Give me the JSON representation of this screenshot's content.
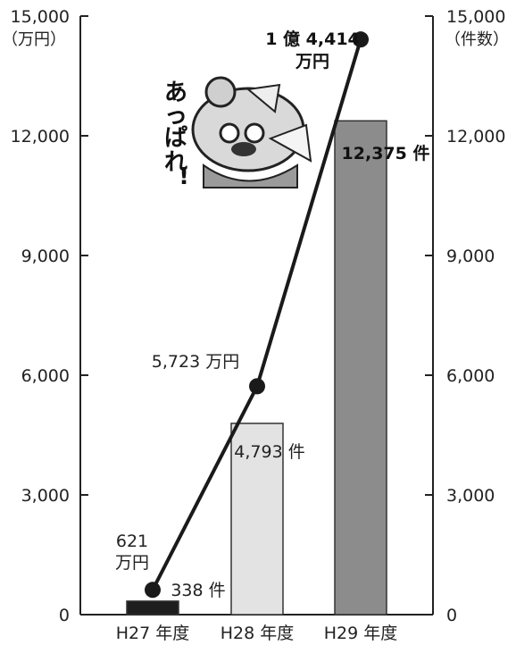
{
  "chart_data": {
    "type": "bar+line",
    "categories": [
      "H27 年度",
      "H28 年度",
      "H29 年度"
    ],
    "left_axis": {
      "unit": "（万円）",
      "ylim": [
        0,
        15000
      ],
      "ticks": [
        "0",
        "3,000",
        "6,000",
        "9,000",
        "12,000",
        "15,000"
      ]
    },
    "right_axis": {
      "unit": "（件数）",
      "ylim": [
        0,
        15000
      ],
      "ticks": [
        "0",
        "3,000",
        "6,000",
        "9,000",
        "12,000",
        "15,000"
      ]
    },
    "bars": {
      "values": [
        338,
        4793,
        12375
      ],
      "colors": [
        "#1e1e1e",
        "#e3e3e3",
        "#8c8c8c"
      ],
      "labels": [
        "338 件",
        "4,793 件",
        "12,375 件"
      ]
    },
    "line": {
      "values": [
        621,
        5723,
        14414
      ],
      "color": "#1a1a1a",
      "labels": [
        [
          "621",
          "万円"
        ],
        [
          "5,723 万円"
        ],
        [
          "1 億 4,414",
          "万円"
        ]
      ]
    },
    "decoration": {
      "mascot_text": [
        "あ",
        "っ",
        "ぱ",
        "れ",
        "!"
      ]
    }
  }
}
